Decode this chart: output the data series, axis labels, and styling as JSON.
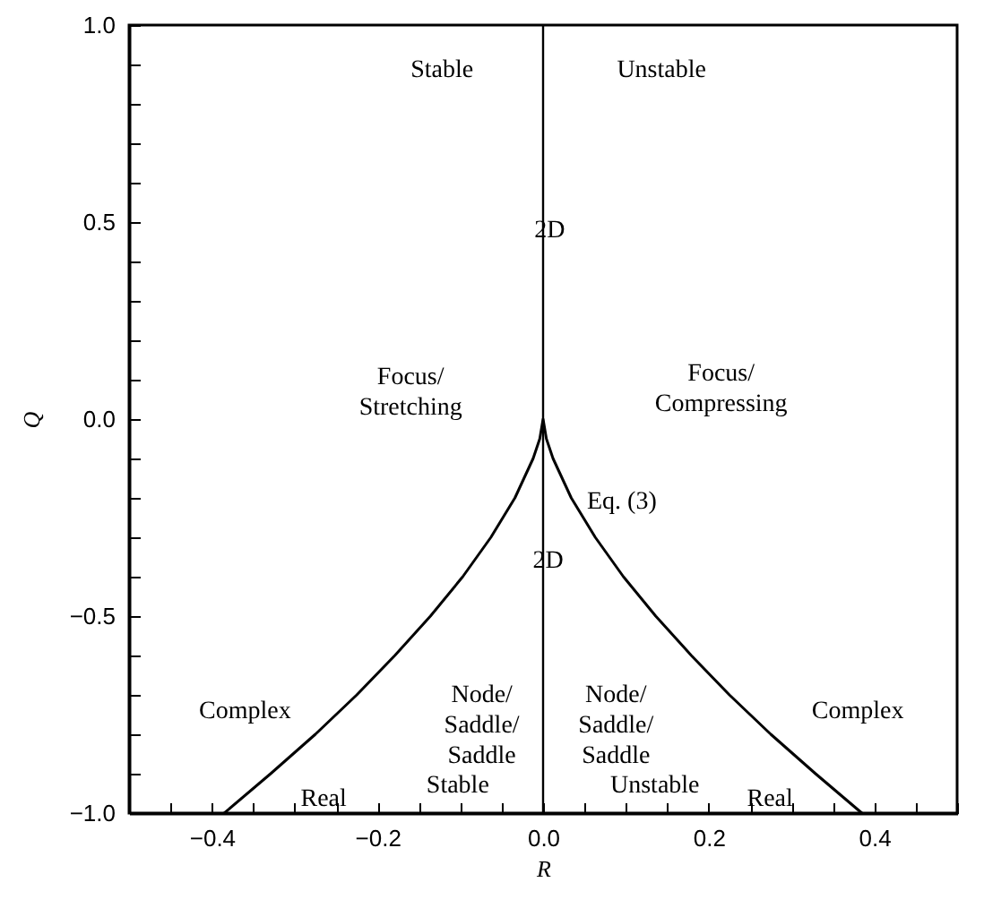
{
  "chart_data": {
    "type": "line",
    "xlabel": "R",
    "ylabel": "Q",
    "xlim": [
      -0.5,
      0.5
    ],
    "ylim": [
      -1,
      1
    ],
    "xticks": [
      {
        "value": -0.5,
        "label": null
      },
      {
        "value": -0.45,
        "label": null
      },
      -0.4,
      {
        "value": -0.35,
        "label": null
      },
      {
        "value": -0.3,
        "label": null
      },
      {
        "value": -0.25,
        "label": null
      },
      -0.2,
      {
        "value": -0.15,
        "label": null
      },
      {
        "value": -0.1,
        "label": null
      },
      {
        "value": -0.05,
        "label": null
      },
      {
        "value": 0,
        "label": "0.0"
      },
      {
        "value": 0.05,
        "label": null
      },
      {
        "value": 0.1,
        "label": null
      },
      {
        "value": 0.15,
        "label": null
      },
      0.2,
      {
        "value": 0.25,
        "label": null
      },
      {
        "value": 0.3,
        "label": null
      },
      {
        "value": 0.35,
        "label": null
      },
      0.4,
      {
        "value": 0.45,
        "label": null
      },
      {
        "value": 0.5,
        "label": null
      }
    ],
    "yticks": [
      {
        "value": -1,
        "label": "−1.0"
      },
      {
        "value": -0.9,
        "label": null
      },
      {
        "value": -0.8,
        "label": null
      },
      {
        "value": -0.7,
        "label": null
      },
      {
        "value": -0.6,
        "label": null
      },
      -0.5,
      {
        "value": -0.4,
        "label": null
      },
      {
        "value": -0.3,
        "label": null
      },
      {
        "value": -0.2,
        "label": null
      },
      {
        "value": -0.1,
        "label": null
      },
      {
        "value": 0,
        "label": "0.0"
      },
      {
        "value": 0.1,
        "label": null
      },
      {
        "value": 0.2,
        "label": null
      },
      {
        "value": 0.3,
        "label": null
      },
      {
        "value": 0.4,
        "label": null
      },
      0.5,
      {
        "value": 0.6,
        "label": null
      },
      {
        "value": 0.7,
        "label": null
      },
      {
        "value": 0.8,
        "label": null
      },
      {
        "value": 0.9,
        "label": null
      },
      {
        "value": 1,
        "label": "1.0"
      }
    ],
    "grid": false,
    "marker": "none",
    "line_style": "solid",
    "series": [
      {
        "color": "#000000",
        "x": [
          -0.385,
          -0.329,
          -0.275,
          -0.225,
          -0.179,
          -0.136,
          -0.097,
          -0.063,
          -0.034,
          -0.012,
          -0.004,
          0,
          0.004,
          0.012,
          0.034,
          0.063,
          0.097,
          0.136,
          0.179,
          0.225,
          0.275,
          0.329,
          0.385
        ],
        "values": [
          -1,
          -0.9,
          -0.8,
          -0.7,
          -0.6,
          -0.5,
          -0.4,
          -0.3,
          -0.2,
          -0.1,
          -0.05,
          0,
          -0.05,
          -0.1,
          -0.2,
          -0.3,
          -0.4,
          -0.5,
          -0.6,
          -0.7,
          -0.8,
          -0.9,
          -1
        ]
      }
    ],
    "ref_lines": [
      {
        "axis": "x",
        "value": 0,
        "color": "#000000"
      }
    ],
    "annotations": [
      "Stable",
      "Unstable",
      "2D",
      "Focus/\nStretching",
      "Focus/\nCompressing",
      {
        "text": "Eq. (3)",
        "x": 0.04,
        "y": -0.21
      },
      "2D",
      "Complex",
      "Complex",
      "Node/\nSaddle/\nSaddle",
      "Node/\nSaddle/\nSaddle",
      "Real",
      "Stable",
      "Unstable",
      "Real"
    ]
  }
}
